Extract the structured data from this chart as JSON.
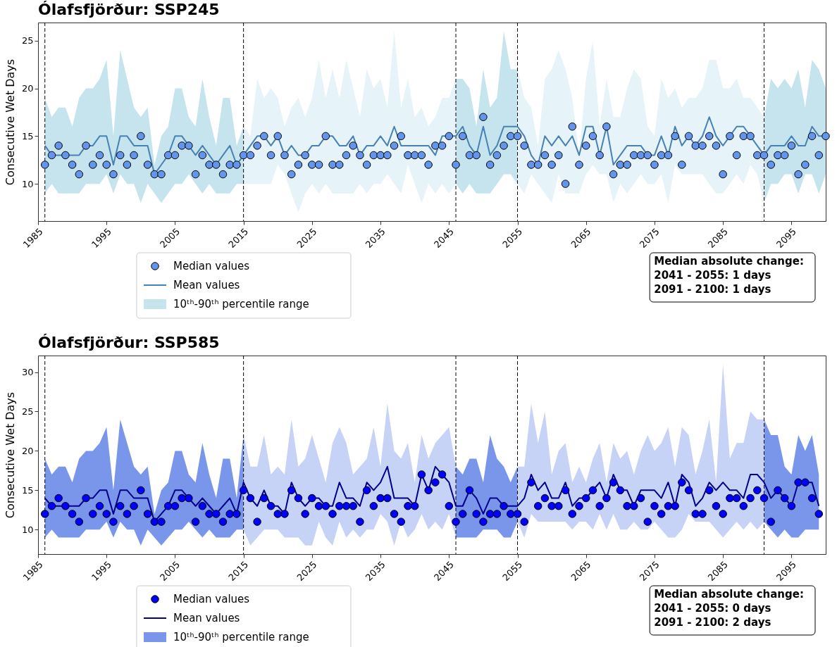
{
  "chart_data": [
    {
      "type": "line",
      "title": "Ólafsfjörður: SSP245",
      "ylabel": "Consecutive Wet Days",
      "x": [
        1986,
        1987,
        1988,
        1989,
        1990,
        1991,
        1992,
        1993,
        1994,
        1995,
        1996,
        1997,
        1998,
        1999,
        2000,
        2001,
        2002,
        2003,
        2004,
        2005,
        2006,
        2007,
        2008,
        2009,
        2010,
        2011,
        2012,
        2013,
        2014,
        2015,
        2016,
        2017,
        2018,
        2019,
        2020,
        2021,
        2022,
        2023,
        2024,
        2025,
        2026,
        2027,
        2028,
        2029,
        2030,
        2031,
        2032,
        2033,
        2034,
        2035,
        2036,
        2037,
        2038,
        2039,
        2040,
        2041,
        2042,
        2043,
        2044,
        2045,
        2046,
        2047,
        2048,
        2049,
        2050,
        2051,
        2052,
        2053,
        2054,
        2055,
        2056,
        2057,
        2058,
        2059,
        2060,
        2061,
        2062,
        2063,
        2064,
        2065,
        2066,
        2067,
        2068,
        2069,
        2070,
        2071,
        2072,
        2073,
        2074,
        2075,
        2076,
        2077,
        2078,
        2079,
        2080,
        2081,
        2082,
        2083,
        2084,
        2085,
        2086,
        2087,
        2088,
        2089,
        2090,
        2091,
        2092,
        2093,
        2094,
        2095,
        2096,
        2097,
        2098,
        2099,
        2100
      ],
      "xlim": [
        1985,
        2100
      ],
      "xticks": [
        1985,
        1995,
        2005,
        2015,
        2025,
        2035,
        2045,
        2055,
        2065,
        2075,
        2085,
        2095
      ],
      "ylim": [
        6.1,
        26.9
      ],
      "yticks": [
        10,
        15,
        20,
        25
      ],
      "legend": "bottom left",
      "grid": false,
      "series": [
        {
          "type": "scatter",
          "marker": "circle",
          "name": "Median values",
          "color": "#6495ed",
          "values": [
            12,
            13,
            14,
            13,
            12,
            11,
            14,
            12,
            13,
            12,
            11,
            13,
            12,
            13,
            15,
            12,
            11,
            11,
            13,
            13,
            14,
            14,
            11,
            13,
            12,
            12,
            11,
            12,
            12,
            13,
            13,
            14,
            15,
            13,
            15,
            13,
            11,
            12,
            13,
            12,
            12,
            15,
            12,
            12,
            13,
            14,
            13,
            12,
            13,
            13,
            13,
            14,
            15,
            13,
            13,
            13,
            12,
            14,
            14,
            15,
            12,
            15,
            13,
            13,
            17,
            12,
            13,
            14,
            15,
            15,
            14,
            12,
            12,
            13,
            12,
            13,
            10,
            16,
            12,
            14,
            15,
            13,
            16,
            11,
            12,
            12,
            13,
            13,
            13,
            12,
            13,
            13,
            15,
            12,
            15,
            14,
            14,
            15,
            14,
            11,
            15,
            13,
            15,
            15,
            13,
            13,
            12,
            13,
            13,
            14,
            11,
            12,
            15,
            13,
            15
          ]
        },
        {
          "name": "Mean values",
          "color": "#4682b4",
          "values": [
            14,
            13,
            13,
            13,
            13,
            13,
            14,
            14,
            15,
            15,
            12,
            15,
            15,
            14,
            14,
            14,
            11,
            12,
            13,
            15,
            15,
            14,
            13,
            14,
            13,
            12,
            13,
            14,
            12,
            13,
            14,
            15,
            15,
            14,
            15,
            13,
            14,
            13,
            13,
            14,
            14,
            15,
            15,
            14,
            14,
            15,
            13,
            14,
            14,
            15,
            14,
            16,
            14,
            14,
            14,
            14,
            14,
            13,
            15,
            15,
            15,
            16,
            14,
            13,
            16,
            13,
            14,
            16,
            16,
            16,
            15,
            13,
            12,
            15,
            14,
            15,
            14,
            15,
            13,
            16,
            16,
            13,
            16,
            12,
            13,
            14,
            14,
            14,
            13,
            13,
            15,
            13,
            16,
            14,
            15,
            14,
            15,
            17,
            15,
            14,
            15,
            16,
            16,
            15,
            14,
            13,
            14,
            14,
            14,
            15,
            14,
            14,
            16,
            15,
            15
          ]
        },
        {
          "name": "10ᵗʰ-90ᵗʰ percentile range",
          "color": "#c6e4ee",
          "values": [
            null,
            null,
            null,
            null,
            null,
            null,
            null,
            null,
            null,
            null,
            null,
            null,
            null,
            null,
            null,
            null,
            null,
            null,
            null,
            null,
            null,
            null,
            null,
            null,
            null,
            null,
            null,
            null,
            null,
            null,
            null,
            null,
            null,
            null,
            null,
            null,
            null,
            null,
            null,
            null,
            null,
            null,
            null,
            null,
            null,
            null,
            null,
            null,
            null,
            null,
            null,
            null,
            null,
            null,
            null,
            null,
            null,
            null,
            null,
            null,
            null,
            null,
            null,
            null,
            null,
            null,
            null,
            null,
            null,
            null,
            null,
            null,
            null,
            null,
            null,
            null,
            null,
            null,
            null,
            null,
            null,
            null,
            null,
            null,
            null,
            null,
            null,
            null,
            null,
            null,
            null,
            null,
            null,
            null,
            null,
            null,
            null,
            null,
            null,
            null,
            null,
            null,
            null,
            null,
            null,
            null,
            null,
            null,
            null,
            null,
            null,
            null,
            null,
            null,
            null
          ],
          "lower": [
            9,
            10,
            9,
            9,
            9,
            9,
            10,
            10,
            10,
            11,
            9,
            11,
            10,
            10,
            8,
            10,
            9,
            8,
            9,
            10,
            10,
            11,
            10,
            9,
            10,
            9,
            9,
            9,
            10,
            10,
            null,
            null,
            null,
            null,
            null,
            null,
            null,
            null,
            null,
            null,
            null,
            null,
            null,
            null,
            null,
            null,
            null,
            null,
            null,
            null,
            null,
            null,
            null,
            null,
            null,
            null,
            null,
            null,
            null,
            null,
            10,
            9,
            10,
            9,
            9,
            9,
            10,
            11,
            11,
            10,
            null,
            null,
            null,
            null,
            null,
            null,
            null,
            null,
            null,
            null,
            null,
            null,
            null,
            null,
            null,
            null,
            null,
            null,
            null,
            null,
            null,
            null,
            null,
            null,
            null,
            null,
            null,
            null,
            null,
            null,
            null,
            null,
            null,
            null,
            null,
            8,
            10,
            10,
            11,
            11,
            9,
            11,
            11,
            9,
            11
          ],
          "upper": [
            19,
            17,
            18,
            18,
            16,
            19,
            20,
            20,
            21,
            23,
            15,
            24,
            21,
            18,
            17,
            18,
            12,
            15,
            16,
            20,
            20,
            17,
            16,
            21,
            17,
            14,
            19,
            19,
            14,
            16,
            null,
            null,
            null,
            null,
            null,
            null,
            null,
            null,
            null,
            null,
            null,
            null,
            null,
            null,
            null,
            null,
            null,
            null,
            null,
            null,
            null,
            null,
            null,
            null,
            null,
            null,
            null,
            null,
            null,
            null,
            21,
            21,
            20,
            16,
            22,
            18,
            19,
            26,
            22,
            22,
            null,
            null,
            null,
            null,
            null,
            null,
            null,
            null,
            null,
            null,
            null,
            null,
            null,
            null,
            null,
            null,
            null,
            null,
            null,
            null,
            null,
            null,
            null,
            null,
            null,
            null,
            null,
            null,
            null,
            null,
            null,
            null,
            null,
            null,
            null,
            17,
            21,
            20,
            21,
            20,
            22,
            18,
            23,
            22,
            20
          ]
        },
        {
          "color": "#e6f3f8",
          "values": [
            null,
            null,
            null,
            null,
            null,
            null,
            null,
            null,
            null,
            null,
            null,
            null,
            null,
            null,
            null,
            null,
            null,
            null,
            null,
            null,
            null,
            null,
            null,
            null,
            null,
            null,
            null,
            null,
            null,
            null,
            null,
            null,
            null,
            null,
            null,
            null,
            null,
            null,
            null,
            null,
            null,
            null,
            null,
            null,
            null,
            null,
            null,
            null,
            null,
            null,
            null,
            null,
            null,
            null,
            null,
            null,
            null,
            null,
            null,
            null,
            null,
            null,
            null,
            null,
            null,
            null,
            null,
            null,
            null,
            null,
            null,
            null,
            null,
            null,
            null,
            null,
            null,
            null,
            null,
            null,
            null,
            null,
            null,
            null,
            null,
            null,
            null,
            null,
            null,
            null,
            null,
            null,
            null,
            null,
            null,
            null,
            null,
            null,
            null,
            null,
            null,
            null,
            null,
            null,
            null,
            null,
            null,
            null,
            null,
            null,
            null,
            null,
            null,
            null,
            null
          ],
          "lower": [
            null,
            null,
            null,
            null,
            null,
            null,
            null,
            null,
            null,
            null,
            null,
            null,
            null,
            null,
            null,
            null,
            null,
            null,
            null,
            null,
            null,
            null,
            null,
            null,
            null,
            null,
            null,
            null,
            null,
            10,
            10,
            10,
            10,
            10,
            12,
            11,
            9,
            7,
            9,
            10,
            9,
            10,
            9,
            9,
            9,
            9,
            10,
            9,
            10,
            10,
            11,
            10,
            9,
            12,
            10,
            8,
            10,
            9,
            10,
            9,
            10,
            null,
            null,
            null,
            null,
            null,
            null,
            null,
            null,
            10,
            9,
            11,
            10,
            9,
            8,
            11,
            9,
            9,
            9,
            11,
            12,
            11,
            11,
            8,
            10,
            9,
            10,
            11,
            10,
            10,
            11,
            8,
            12,
            11,
            11,
            11,
            11,
            10,
            9,
            9,
            10,
            11,
            10,
            12,
            11,
            8,
            null,
            null,
            null,
            null,
            null,
            null,
            null,
            null,
            null
          ],
          "upper": [
            null,
            null,
            null,
            null,
            null,
            null,
            null,
            null,
            null,
            null,
            null,
            null,
            null,
            null,
            null,
            null,
            null,
            null,
            null,
            null,
            null,
            null,
            null,
            null,
            null,
            null,
            null,
            null,
            null,
            16,
            15,
            21,
            19,
            20,
            19,
            16,
            18,
            19,
            17,
            19,
            23,
            19,
            22,
            19,
            23,
            20,
            17,
            22,
            20,
            21,
            18,
            26,
            18,
            21,
            17,
            18,
            16,
            17,
            19,
            19,
            21,
            null,
            null,
            null,
            null,
            null,
            null,
            null,
            null,
            22,
            19,
            18,
            14,
            21,
            22,
            24,
            22,
            19,
            13,
            21,
            25,
            16,
            21,
            17,
            17,
            20,
            22,
            21,
            16,
            15,
            21,
            19,
            20,
            18,
            19,
            19,
            20,
            23,
            23,
            20,
            20,
            21,
            19,
            19,
            18,
            17,
            null,
            null,
            null,
            null,
            null,
            null,
            null,
            null,
            null
          ]
        }
      ],
      "ref_lines": [
        {
          "axis": "x",
          "value": 1986,
          "color": "#000000",
          "line_style": "dashed"
        },
        {
          "axis": "x",
          "value": 2015,
          "color": "#000000",
          "line_style": "dashed"
        },
        {
          "axis": "x",
          "value": 2046,
          "color": "#000000",
          "line_style": "dashed"
        },
        {
          "axis": "x",
          "value": 2055,
          "color": "#000000",
          "line_style": "dashed"
        },
        {
          "axis": "x",
          "value": 2091,
          "color": "#000000",
          "line_style": "dashed"
        }
      ],
      "annotations": [
        "Median absolute change:\n 2041 - 2055: 1 days\n 2091 - 2100: 1 days"
      ]
    },
    {
      "type": "line",
      "title": "Ólafsfjörður: SSP585",
      "ylabel": "Consecutive Wet Days",
      "x": [
        1986,
        1987,
        1988,
        1989,
        1990,
        1991,
        1992,
        1993,
        1994,
        1995,
        1996,
        1997,
        1998,
        1999,
        2000,
        2001,
        2002,
        2003,
        2004,
        2005,
        2006,
        2007,
        2008,
        2009,
        2010,
        2011,
        2012,
        2013,
        2014,
        2015,
        2016,
        2017,
        2018,
        2019,
        2020,
        2021,
        2022,
        2023,
        2024,
        2025,
        2026,
        2027,
        2028,
        2029,
        2030,
        2031,
        2032,
        2033,
        2034,
        2035,
        2036,
        2037,
        2038,
        2039,
        2040,
        2041,
        2042,
        2043,
        2044,
        2045,
        2046,
        2047,
        2048,
        2049,
        2050,
        2051,
        2052,
        2053,
        2054,
        2055,
        2056,
        2057,
        2058,
        2059,
        2060,
        2061,
        2062,
        2063,
        2064,
        2065,
        2066,
        2067,
        2068,
        2069,
        2070,
        2071,
        2072,
        2073,
        2074,
        2075,
        2076,
        2077,
        2078,
        2079,
        2080,
        2081,
        2082,
        2083,
        2084,
        2085,
        2086,
        2087,
        2088,
        2089,
        2090,
        2091,
        2092,
        2093,
        2094,
        2095,
        2096,
        2097,
        2098,
        2099
      ],
      "xlim": [
        1985,
        2100
      ],
      "xticks": [
        1985,
        1995,
        2005,
        2015,
        2025,
        2035,
        2045,
        2055,
        2065,
        2075,
        2085,
        2095
      ],
      "ylim": [
        6.9,
        32.1
      ],
      "yticks": [
        10,
        15,
        20,
        25,
        30
      ],
      "legend": "bottom left",
      "grid": false,
      "series": [
        {
          "type": "scatter",
          "marker": "circle",
          "name": "Median values",
          "color": "#0000ff",
          "values": [
            12,
            13,
            14,
            13,
            12,
            11,
            14,
            12,
            13,
            12,
            11,
            13,
            12,
            13,
            15,
            12,
            11,
            11,
            13,
            13,
            14,
            14,
            11,
            13,
            12,
            12,
            11,
            12,
            12,
            15,
            14,
            11,
            14,
            13,
            12,
            12,
            15,
            14,
            12,
            14,
            13,
            13,
            12,
            13,
            13,
            13,
            11,
            15,
            13,
            14,
            14,
            12,
            11,
            13,
            13,
            17,
            15,
            16,
            17,
            13,
            11,
            12,
            15,
            12,
            11,
            12,
            12,
            13,
            12,
            12,
            11,
            16,
            13,
            14,
            13,
            13,
            15,
            12,
            13,
            14,
            15,
            13,
            14,
            16,
            15,
            13,
            13,
            14,
            11,
            13,
            12,
            13,
            13,
            16,
            15,
            12,
            12,
            15,
            13,
            12,
            14,
            14,
            13,
            14,
            15,
            14,
            11,
            15,
            14,
            13,
            16,
            16,
            14,
            12
          ]
        },
        {
          "name": "Mean values",
          "color": "#00008b",
          "values": [
            14,
            13,
            13,
            13,
            13,
            13,
            14,
            14,
            15,
            15,
            12,
            15,
            15,
            14,
            14,
            14,
            11,
            12,
            13,
            15,
            15,
            14,
            13,
            14,
            13,
            12,
            13,
            14,
            12,
            16,
            14,
            13,
            15,
            13,
            13,
            12,
            16,
            14,
            13,
            14,
            14,
            13,
            13,
            16,
            14,
            14,
            13,
            16,
            15,
            16,
            18,
            14,
            14,
            14,
            13,
            17,
            15,
            18,
            17,
            16,
            13,
            13,
            15,
            14,
            12,
            14,
            14,
            13,
            13,
            13,
            14,
            17,
            15,
            16,
            14,
            14,
            16,
            13,
            14,
            14,
            15,
            16,
            14,
            17,
            15,
            15,
            13,
            15,
            15,
            15,
            14,
            16,
            13,
            17,
            16,
            13,
            14,
            16,
            15,
            16,
            15,
            15,
            14,
            17,
            17,
            16,
            14,
            15,
            14,
            13,
            16,
            16,
            16,
            13
          ]
        },
        {
          "name": "10ᵗʰ-90ᵗʰ percentile range",
          "color": "#7a96ea",
          "values": [
            null,
            null,
            null,
            null,
            null,
            null,
            null,
            null,
            null,
            null,
            null,
            null,
            null,
            null,
            null,
            null,
            null,
            null,
            null,
            null,
            null,
            null,
            null,
            null,
            null,
            null,
            null,
            null,
            null,
            null,
            null,
            null,
            null,
            null,
            null,
            null,
            null,
            null,
            null,
            null,
            null,
            null,
            null,
            null,
            null,
            null,
            null,
            null,
            null,
            null,
            null,
            null,
            null,
            null,
            null,
            null,
            null,
            null,
            null,
            null,
            null,
            null,
            null,
            null,
            null,
            null,
            null,
            null,
            null,
            null,
            null,
            null,
            null,
            null,
            null,
            null,
            null,
            null,
            null,
            null,
            null,
            null,
            null,
            null,
            null,
            null,
            null,
            null,
            null,
            null,
            null,
            null,
            null,
            null,
            null,
            null,
            null,
            null,
            null,
            null,
            null,
            null,
            null,
            null,
            null,
            null,
            null,
            null,
            null,
            null,
            null,
            null,
            null,
            null
          ],
          "lower": [
            9,
            10,
            9,
            9,
            9,
            9,
            10,
            10,
            10,
            11,
            9,
            11,
            10,
            10,
            8,
            10,
            9,
            8,
            9,
            10,
            10,
            11,
            10,
            9,
            10,
            9,
            9,
            9,
            10,
            10,
            null,
            null,
            null,
            null,
            null,
            null,
            null,
            null,
            null,
            null,
            null,
            null,
            null,
            null,
            null,
            null,
            null,
            null,
            null,
            null,
            null,
            null,
            null,
            null,
            null,
            null,
            null,
            null,
            null,
            null,
            9,
            9,
            9,
            9,
            10,
            10,
            10,
            9,
            9,
            11,
            null,
            null,
            null,
            null,
            null,
            null,
            null,
            null,
            null,
            null,
            null,
            null,
            null,
            null,
            null,
            null,
            null,
            null,
            null,
            null,
            null,
            null,
            null,
            null,
            null,
            null,
            null,
            null,
            null,
            null,
            null,
            null,
            null,
            null,
            null,
            11,
            10,
            9,
            10,
            9,
            9,
            10,
            10,
            10
          ],
          "upper": [
            19,
            17,
            18,
            18,
            16,
            19,
            20,
            20,
            21,
            23,
            15,
            24,
            21,
            18,
            17,
            18,
            12,
            15,
            16,
            20,
            20,
            17,
            16,
            21,
            17,
            14,
            19,
            19,
            14,
            22,
            null,
            null,
            null,
            null,
            null,
            null,
            null,
            null,
            null,
            null,
            null,
            null,
            null,
            null,
            null,
            null,
            null,
            null,
            null,
            null,
            null,
            null,
            null,
            null,
            null,
            null,
            null,
            null,
            null,
            null,
            18,
            17,
            19,
            19,
            16,
            22,
            19,
            18,
            16,
            18,
            null,
            null,
            null,
            null,
            null,
            null,
            null,
            null,
            null,
            null,
            null,
            null,
            null,
            null,
            null,
            null,
            null,
            null,
            null,
            null,
            null,
            null,
            null,
            null,
            null,
            null,
            null,
            null,
            null,
            null,
            null,
            null,
            null,
            null,
            null,
            24,
            22,
            22,
            18,
            17,
            22,
            20,
            22,
            17
          ]
        },
        {
          "color": "#c6d2f6",
          "values": [
            null,
            null,
            null,
            null,
            null,
            null,
            null,
            null,
            null,
            null,
            null,
            null,
            null,
            null,
            null,
            null,
            null,
            null,
            null,
            null,
            null,
            null,
            null,
            null,
            null,
            null,
            null,
            null,
            null,
            null,
            null,
            null,
            null,
            null,
            null,
            null,
            null,
            null,
            null,
            null,
            null,
            null,
            null,
            null,
            null,
            null,
            null,
            null,
            null,
            null,
            null,
            null,
            null,
            null,
            null,
            null,
            null,
            null,
            null,
            null,
            null,
            null,
            null,
            null,
            null,
            null,
            null,
            null,
            null,
            null,
            null,
            null,
            null,
            null,
            null,
            null,
            null,
            null,
            null,
            null,
            null,
            null,
            null,
            null,
            null,
            null,
            null,
            null,
            null,
            null,
            null,
            null,
            null,
            null,
            null,
            null,
            null,
            null,
            null,
            null,
            null,
            null,
            null,
            null,
            null,
            null,
            null,
            null,
            null,
            null,
            null,
            null,
            null,
            null
          ],
          "lower": [
            null,
            null,
            null,
            null,
            null,
            null,
            null,
            null,
            null,
            null,
            null,
            null,
            null,
            null,
            null,
            null,
            null,
            null,
            null,
            null,
            null,
            null,
            null,
            null,
            null,
            null,
            null,
            null,
            null,
            10,
            8,
            9,
            10,
            10,
            10,
            9,
            9,
            9,
            8,
            8,
            11,
            9,
            8,
            11,
            9,
            10,
            9,
            10,
            10,
            12,
            11,
            8,
            11,
            9,
            10,
            12,
            10,
            11,
            10,
            12,
            9,
            null,
            null,
            null,
            null,
            null,
            null,
            null,
            null,
            11,
            9,
            12,
            11,
            11,
            11,
            11,
            11,
            10,
            11,
            11,
            10,
            12,
            10,
            12,
            10,
            10,
            11,
            10,
            10,
            11,
            10,
            9,
            9,
            10,
            12,
            11,
            11,
            11,
            10,
            9,
            10,
            11,
            10,
            11,
            10,
            11,
            null,
            null,
            null,
            null,
            null,
            null,
            null,
            null
          ],
          "upper": [
            null,
            null,
            null,
            null,
            null,
            null,
            null,
            null,
            null,
            null,
            null,
            null,
            null,
            null,
            null,
            null,
            null,
            null,
            null,
            null,
            null,
            null,
            null,
            null,
            null,
            null,
            null,
            null,
            null,
            22,
            18,
            18,
            22,
            17,
            18,
            17,
            24,
            18,
            19,
            22,
            19,
            16,
            21,
            23,
            21,
            17,
            18,
            19,
            23,
            18,
            26,
            20,
            19,
            21,
            16,
            22,
            19,
            21,
            22,
            23,
            18,
            null,
            null,
            null,
            null,
            null,
            null,
            null,
            null,
            18,
            18,
            26,
            21,
            25,
            17,
            20,
            21,
            16,
            18,
            16,
            19,
            21,
            16,
            21,
            19,
            20,
            17,
            20,
            22,
            20,
            21,
            23,
            18,
            23,
            22,
            17,
            20,
            24,
            16,
            31,
            19,
            21,
            21,
            25,
            24,
            24,
            null,
            null,
            null,
            null,
            null,
            null,
            null,
            null
          ]
        }
      ],
      "ref_lines": [
        {
          "axis": "x",
          "value": 1986,
          "color": "#000000",
          "line_style": "dashed"
        },
        {
          "axis": "x",
          "value": 2015,
          "color": "#000000",
          "line_style": "dashed"
        },
        {
          "axis": "x",
          "value": 2046,
          "color": "#000000",
          "line_style": "dashed"
        },
        {
          "axis": "x",
          "value": 2055,
          "color": "#000000",
          "line_style": "dashed"
        },
        {
          "axis": "x",
          "value": 2091,
          "color": "#000000",
          "line_style": "dashed"
        }
      ],
      "annotations": [
        "Median absolute change:\n 2041 - 2055: 0 days\n 2091 - 2100: 2 days"
      ]
    }
  ]
}
